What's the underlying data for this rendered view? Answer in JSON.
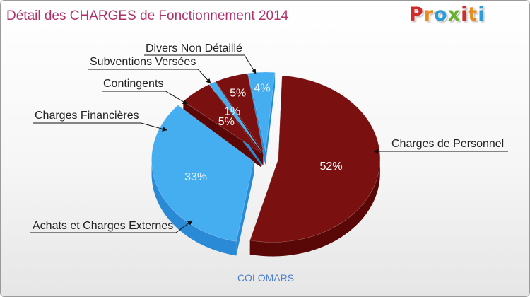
{
  "title": "Détail des CHARGES de Fonctionnement 2014",
  "logo": {
    "text": "Proxiti",
    "letter_colors": [
      "#d02a2a",
      "#e98a1e",
      "#2f9bd6",
      "#6ab12e",
      "#d02a2a",
      "#e98a1e",
      "#2f9bd6"
    ]
  },
  "footer": "COLOMARS",
  "colors": {
    "dark_red_top": "#7a1010",
    "dark_red_side": "#5a0707",
    "blue_top": "#45aef0",
    "blue_side": "#2a8ad6",
    "percent_dark": "#ffffff",
    "percent_blue": "#e8f4ff",
    "label_text": "#222222"
  },
  "chart_data": {
    "type": "pie",
    "title": "Détail des CHARGES de Fonctionnement 2014",
    "slices": [
      {
        "label": "Charges de Personnel",
        "percent_label": "52%",
        "value": 52,
        "color": "dark-red"
      },
      {
        "label": "Achats et Charges Externes",
        "percent_label": "33%",
        "value": 33,
        "color": "blue"
      },
      {
        "label": "Charges Financières",
        "percent_label": "5%",
        "value": 5,
        "color": "dark-red"
      },
      {
        "label": "Contingents",
        "percent_label": "1%",
        "value": 1,
        "color": "blue"
      },
      {
        "label": "Subventions Versées",
        "percent_label": "5%",
        "value": 5,
        "color": "dark-red"
      },
      {
        "label": "Divers Non Détaillé",
        "percent_label": "4%",
        "value": 4,
        "color": "blue"
      }
    ]
  }
}
